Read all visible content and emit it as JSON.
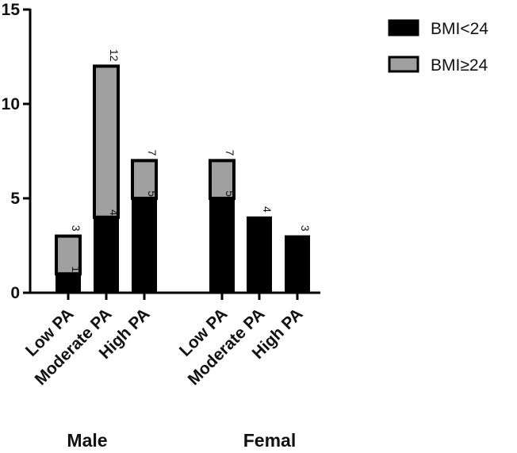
{
  "chart_data": {
    "type": "bar",
    "stacked": true,
    "title": "",
    "xlabel": "",
    "ylabel": "",
    "ylim": [
      0,
      15
    ],
    "yticks": [
      0,
      5,
      10,
      15
    ],
    "categories": [
      "Low PA",
      "Moderate PA",
      "High PA",
      "Low PA",
      "Moderate PA",
      "High PA"
    ],
    "groups": [
      {
        "name": "Male",
        "category_indices": [
          0,
          1,
          2
        ]
      },
      {
        "name": "Femal",
        "category_indices": [
          3,
          4,
          5
        ]
      }
    ],
    "series": [
      {
        "name": "BMI<24",
        "color": "#000000",
        "values": [
          1,
          4,
          5,
          5,
          4,
          3
        ]
      },
      {
        "name": "BMI≥24",
        "color": "#a0a0a0",
        "values": [
          2,
          8,
          2,
          2,
          0,
          0
        ]
      }
    ],
    "inner_labels": [
      "1",
      "4",
      "5",
      "5",
      "",
      ""
    ],
    "total_labels": [
      "3",
      "12",
      "7",
      "7",
      "4",
      "3"
    ],
    "legend_position": "top-right"
  }
}
